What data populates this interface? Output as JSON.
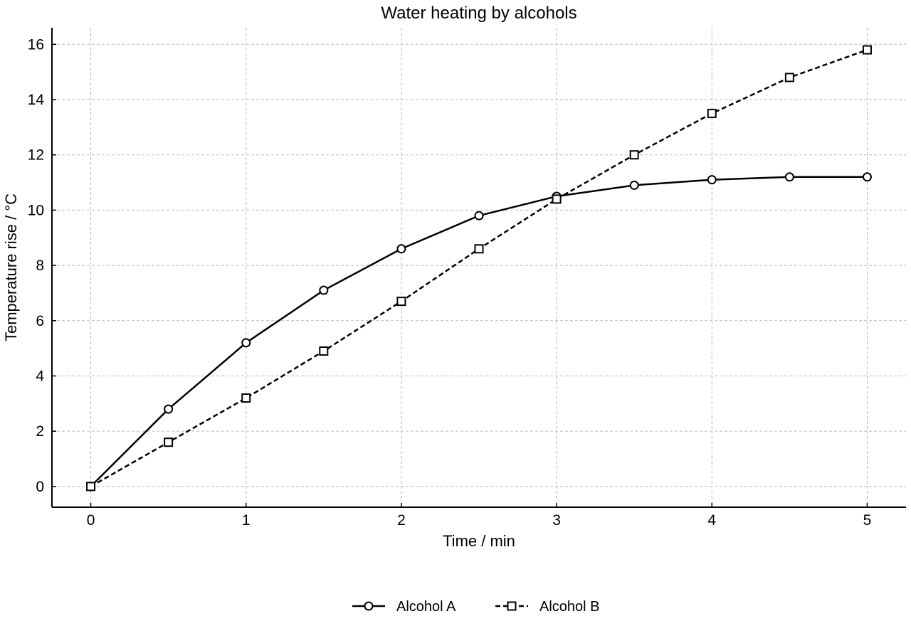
{
  "chart_data": {
    "type": "line",
    "title": "Water heating by alcohols",
    "xlabel": "Time / min",
    "ylabel": "Temperature rise / °C",
    "x": [
      0,
      0.5,
      1,
      1.5,
      2,
      2.5,
      3,
      3.5,
      4,
      4.5,
      5
    ],
    "xlim": [
      -0.25,
      5.25
    ],
    "ylim": [
      -0.75,
      16.6
    ],
    "xticks": [
      0,
      1,
      2,
      3,
      4,
      5
    ],
    "yticks": [
      0,
      2,
      4,
      6,
      8,
      10,
      12,
      14,
      16
    ],
    "grid": true,
    "legend": "bottom-center",
    "series": [
      {
        "name": "Alcohol A",
        "values": [
          0,
          2.8,
          5.2,
          7.1,
          8.6,
          9.8,
          10.5,
          10.9,
          11.1,
          11.2,
          11.2
        ],
        "marker": "circle",
        "line_style": "solid",
        "color": "#000000"
      },
      {
        "name": "Alcohol B",
        "values": [
          0,
          1.6,
          3.2,
          4.9,
          6.7,
          8.6,
          10.4,
          12.0,
          13.5,
          14.8,
          15.8
        ],
        "marker": "square",
        "line_style": "dashed",
        "color": "#000000"
      }
    ]
  }
}
